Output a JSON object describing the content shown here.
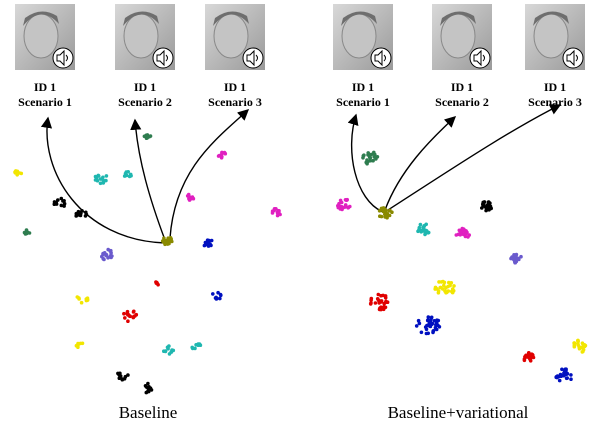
{
  "panels": [
    {
      "caption": "Baseline",
      "images": [
        {
          "id": "ID 1",
          "scenario": "Scenario 1"
        },
        {
          "id": "ID 1",
          "scenario": "Scenario 2"
        },
        {
          "id": "ID 1",
          "scenario": "Scenario 3"
        }
      ]
    },
    {
      "caption": "Baseline+variational",
      "images": [
        {
          "id": "ID 1",
          "scenario": "Scenario 1"
        },
        {
          "id": "ID 1",
          "scenario": "Scenario 2"
        },
        {
          "id": "ID 1",
          "scenario": "Scenario 3"
        }
      ]
    }
  ]
}
